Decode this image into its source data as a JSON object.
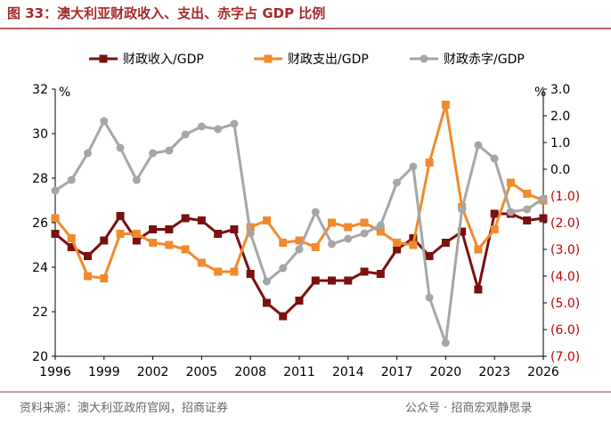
{
  "chart_data": {
    "type": "line",
    "title": "图 33：澳大利亚财政收入、支出、赤字占 GDP 比例",
    "source": "资料来源：澳大利亚政府官网，招商证券",
    "watermark": "公众号 · 招商宏观静思录",
    "y_unit": "%",
    "y2_unit": "%",
    "x": [
      1996,
      1997,
      1998,
      1999,
      2000,
      2001,
      2002,
      2003,
      2004,
      2005,
      2006,
      2007,
      2008,
      2009,
      2010,
      2011,
      2012,
      2013,
      2014,
      2015,
      2016,
      2017,
      2018,
      2019,
      2020,
      2021,
      2022,
      2023,
      2024,
      2025,
      2026
    ],
    "xlim": [
      1996,
      2026
    ],
    "xticks": [
      1996,
      1999,
      2002,
      2005,
      2008,
      2011,
      2014,
      2017,
      2020,
      2023,
      2026
    ],
    "ylim": [
      20,
      32
    ],
    "yticks": [
      20,
      22,
      24,
      26,
      28,
      30,
      32
    ],
    "y2lim": [
      -7,
      3
    ],
    "y2ticks": [
      {
        "value": 3,
        "label": "3.0"
      },
      {
        "value": 2,
        "label": "2.0"
      },
      {
        "value": 1,
        "label": "1.0"
      },
      {
        "value": 0,
        "label": "0.0"
      },
      {
        "value": -1,
        "label": "(1.0)"
      },
      {
        "value": -2,
        "label": "(2.0)"
      },
      {
        "value": -3,
        "label": "(3.0)"
      },
      {
        "value": -4,
        "label": "(4.0)"
      },
      {
        "value": -5,
        "label": "(5.0)"
      },
      {
        "value": -6,
        "label": "(6.0)"
      },
      {
        "value": -7,
        "label": "(7.0)"
      }
    ],
    "series": [
      {
        "name": "财政收入/GDP",
        "color": "#7b1010",
        "marker": "square",
        "values": [
          25.5,
          24.9,
          24.5,
          25.2,
          26.3,
          25.2,
          25.7,
          25.7,
          26.2,
          26.1,
          25.5,
          25.7,
          23.7,
          22.4,
          21.8,
          22.5,
          23.4,
          23.4,
          23.4,
          23.8,
          23.7,
          24.8,
          25.3,
          24.5,
          25.1,
          25.6,
          23.0,
          26.4,
          26.4,
          26.1,
          26.2
        ]
      },
      {
        "name": "财政支出/GDP",
        "color": "#f08a2c",
        "marker": "square",
        "values": [
          26.2,
          25.3,
          23.6,
          23.5,
          25.5,
          25.5,
          25.1,
          25.0,
          24.8,
          24.2,
          23.8,
          23.8,
          25.8,
          26.1,
          25.1,
          25.2,
          24.9,
          26.0,
          25.8,
          26.0,
          25.6,
          25.1,
          25.0,
          28.7,
          31.3,
          26.7,
          24.8,
          25.7,
          27.8,
          27.3,
          27.0
        ]
      },
      {
        "name": "财政赤字/GDP",
        "color": "#a6a6a6",
        "marker": "circle",
        "axis": "y2",
        "values": [
          -0.8,
          -0.4,
          0.6,
          1.8,
          0.8,
          -0.4,
          0.6,
          0.7,
          1.3,
          1.6,
          1.5,
          1.7,
          -2.4,
          -4.2,
          -3.7,
          -3.0,
          -1.6,
          -2.8,
          -2.6,
          -2.4,
          -2.1,
          -0.5,
          0.1,
          -4.8,
          -6.5,
          -1.5,
          0.9,
          0.4,
          -1.6,
          -1.5,
          -1.1
        ]
      }
    ]
  }
}
